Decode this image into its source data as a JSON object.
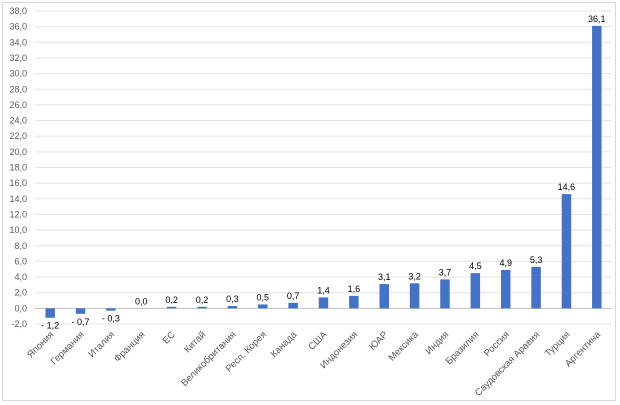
{
  "chart_data": {
    "type": "bar",
    "title": "",
    "xlabel": "",
    "ylabel": "",
    "ylim": [
      -2,
      38
    ],
    "ytick_step": 2,
    "ytick_labels": [
      "-2,0",
      "0,0",
      "2,0",
      "4,0",
      "6,0",
      "8,0",
      "10,0",
      "12,0",
      "14,0",
      "16,0",
      "18,0",
      "20,0",
      "22,0",
      "24,0",
      "26,0",
      "28,0",
      "30,0",
      "32,0",
      "34,0",
      "36,0",
      "38,0"
    ],
    "grid": true,
    "bar_color": "#4472c4",
    "categories": [
      "Япония",
      "Германия",
      "Италия",
      "Франция",
      "ЕС",
      "Китай",
      "Великобритания",
      "Респ. Корея",
      "Канада",
      "США",
      "Индонезия",
      "ЮАР",
      "Мексика",
      "Индия",
      "Бразилия",
      "Россия",
      "Саудовская Аравия",
      "Турция",
      "Аргентина"
    ],
    "values": [
      -1.2,
      -0.7,
      -0.3,
      0.0,
      0.2,
      0.2,
      0.3,
      0.5,
      0.7,
      1.4,
      1.6,
      3.1,
      3.2,
      3.7,
      4.5,
      4.9,
      5.3,
      14.6,
      36.1
    ],
    "value_labels": [
      "- 1,2",
      "- 0,7",
      "- 0,3",
      "0,0",
      "0,2",
      "0,2",
      "0,3",
      "0,5",
      "0,7",
      "1,4",
      "1,6",
      "3,1",
      "3,2",
      "3,7",
      "4,5",
      "4,9",
      "5,3",
      "14,6",
      "36,1"
    ]
  }
}
